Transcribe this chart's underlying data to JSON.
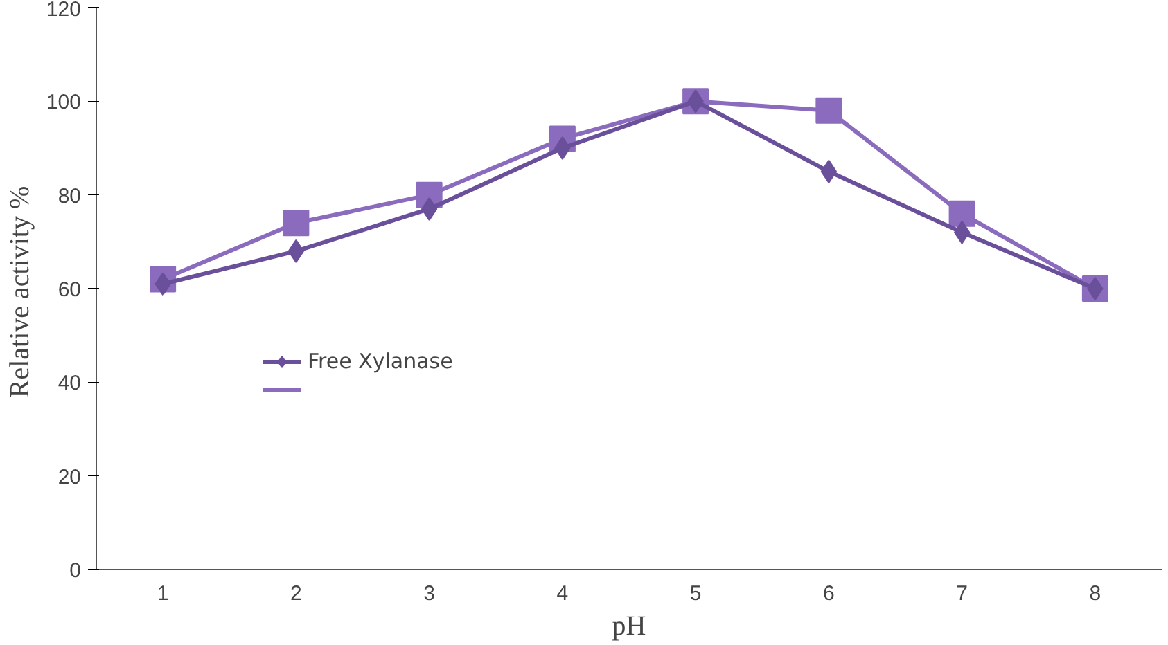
{
  "chart_data": {
    "type": "line",
    "xlabel": "pH",
    "ylabel": "Relative  activity %",
    "categories": [
      "1",
      "2",
      "3",
      "4",
      "5",
      "6",
      "7",
      "8"
    ],
    "series": [
      {
        "name": "Free Xylanase",
        "color": "#6a4f9a",
        "marker": "diamond",
        "values": [
          61,
          68,
          77,
          90,
          100,
          85,
          72,
          60
        ]
      },
      {
        "color": "#8a6bbd",
        "marker": "square",
        "values": [
          62,
          74,
          80,
          92,
          100,
          98,
          76,
          60
        ]
      }
    ],
    "ylim": [
      0,
      120
    ],
    "yticks": [
      0,
      20,
      40,
      60,
      80,
      100,
      120
    ],
    "grid": false,
    "legend": "center left"
  }
}
